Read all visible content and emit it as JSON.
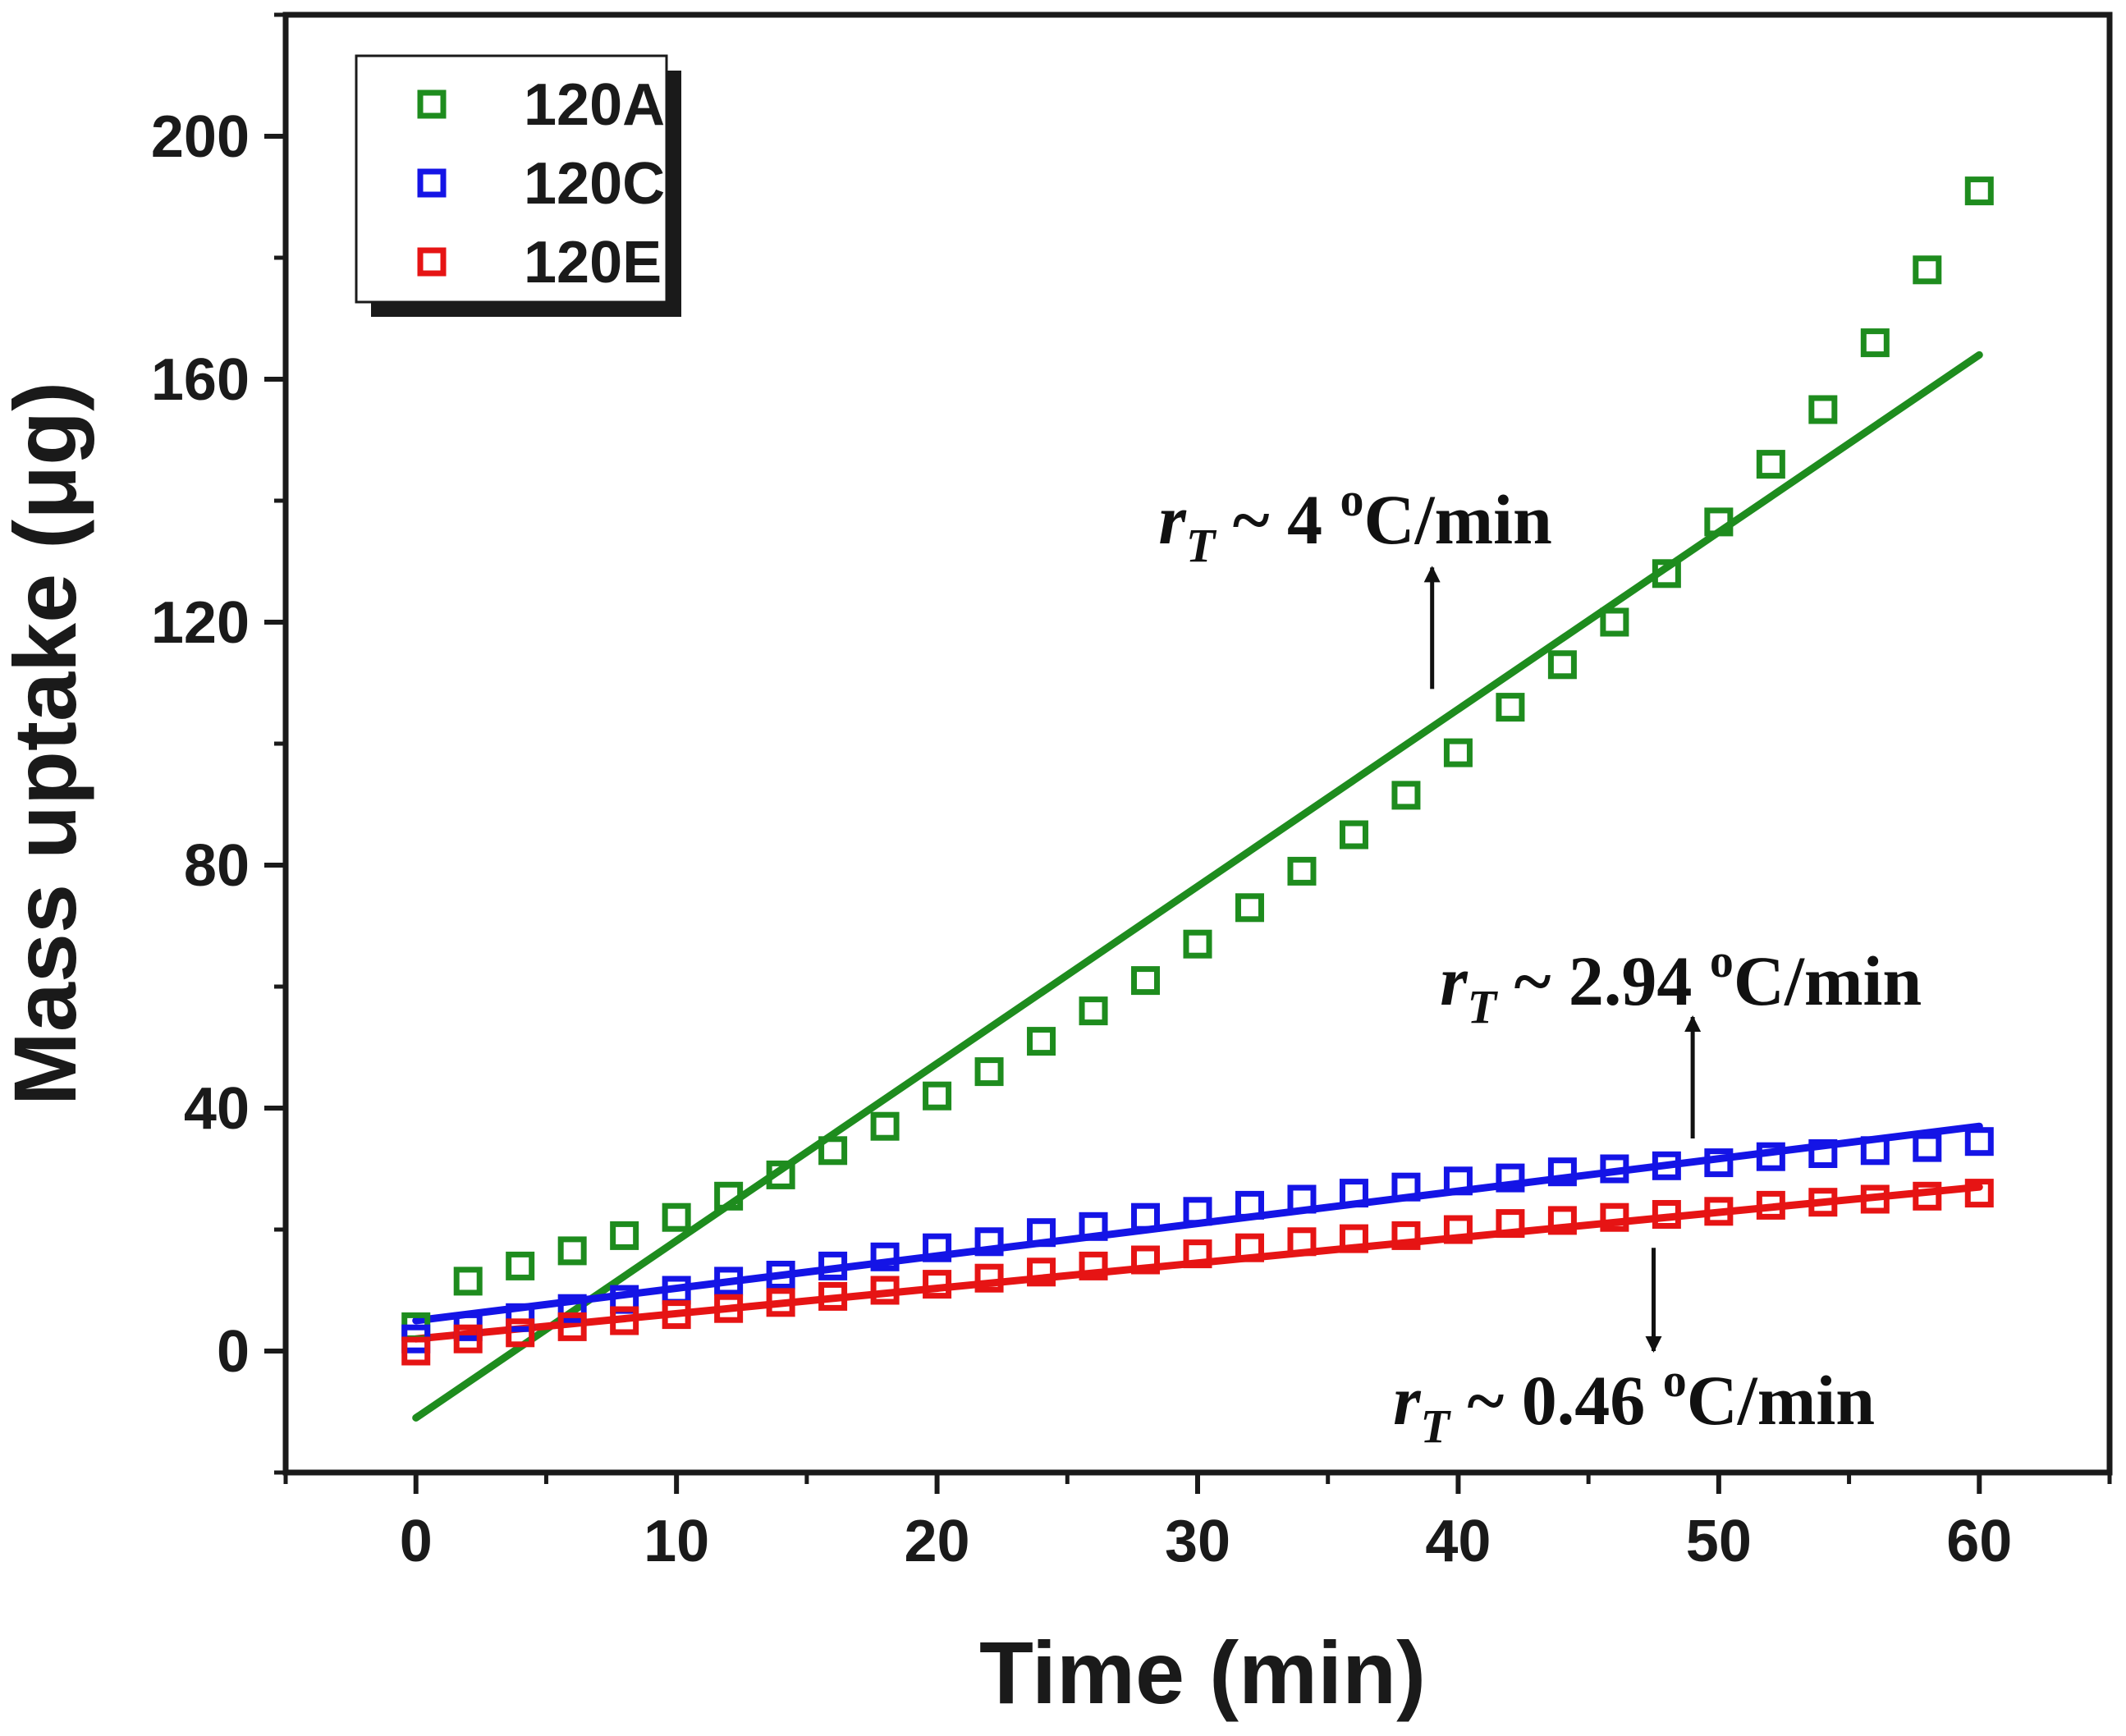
{
  "chart_data": {
    "type": "scatter",
    "xlabel": "Time (min)",
    "ylabel": "Mass uptake (μg)",
    "xlim": [
      -5,
      65
    ],
    "ylim": [
      -20,
      220
    ],
    "x_ticks": [
      0,
      10,
      20,
      30,
      40,
      50,
      60
    ],
    "y_ticks": [
      0,
      40,
      80,
      120,
      160,
      200
    ],
    "grid": false,
    "legend_position": "top-left",
    "series": [
      {
        "name": "120A",
        "color": "#1e8c1e",
        "marker": "open-square",
        "x": [
          0,
          2,
          4,
          6,
          8,
          10,
          12,
          14,
          16,
          18,
          20,
          22,
          24,
          26,
          28,
          30,
          32,
          34,
          36,
          38,
          40,
          42,
          44,
          46,
          48,
          50,
          52,
          54,
          56,
          58,
          60
        ],
        "y": [
          4,
          11.5,
          14,
          16.5,
          19,
          22,
          25.5,
          29,
          33,
          37,
          42,
          46,
          51,
          56,
          61,
          67,
          73,
          79,
          85,
          91.5,
          98.5,
          106,
          113,
          120,
          128,
          136.5,
          146,
          155,
          166,
          178,
          191
        ],
        "fit": {
          "x": [
            0,
            60
          ],
          "y": [
            -11,
            164
          ]
        }
      },
      {
        "name": "120C",
        "color": "#1414e6",
        "marker": "open-square",
        "x": [
          0,
          2,
          4,
          6,
          8,
          10,
          12,
          14,
          16,
          18,
          20,
          22,
          24,
          26,
          28,
          30,
          32,
          34,
          36,
          38,
          40,
          42,
          44,
          46,
          48,
          50,
          52,
          54,
          56,
          58,
          60
        ],
        "y": [
          2,
          4,
          5.5,
          7,
          8.5,
          10,
          11.5,
          12.5,
          14,
          15.5,
          17,
          18,
          19.5,
          20.5,
          22,
          23,
          24,
          25,
          26,
          27,
          28,
          28.5,
          29.5,
          30,
          30.5,
          31,
          32,
          32.5,
          33,
          33.5,
          34.5
        ],
        "fit": {
          "x": [
            0,
            60
          ],
          "y": [
            5,
            37
          ]
        }
      },
      {
        "name": "120E",
        "color": "#e61414",
        "marker": "open-square",
        "x": [
          0,
          2,
          4,
          6,
          8,
          10,
          12,
          14,
          16,
          18,
          20,
          22,
          24,
          26,
          28,
          30,
          32,
          34,
          36,
          38,
          40,
          42,
          44,
          46,
          48,
          50,
          52,
          54,
          56,
          58,
          60
        ],
        "y": [
          0,
          2,
          3,
          4,
          5,
          6,
          7,
          8,
          9,
          10,
          11,
          12,
          13,
          14,
          15,
          16,
          17,
          18,
          18.5,
          19,
          20,
          21,
          21.5,
          22,
          22.5,
          23,
          24,
          24.5,
          25,
          25.5,
          26
        ],
        "fit": {
          "x": [
            0,
            60
          ],
          "y": [
            2,
            27
          ]
        }
      }
    ],
    "annotations": [
      {
        "label": "r",
        "subscript": "T",
        "rest": " ~ 4 ",
        "unit_sup": "o",
        "unit": "C/min",
        "text_at": [
          28.5,
          133
        ],
        "arrow_from": [
          39,
          109
        ],
        "arrow_to": [
          39,
          129
        ]
      },
      {
        "label": "r",
        "subscript": "T",
        "rest": " ~ 2.94 ",
        "unit_sup": "o",
        "unit": "C/min",
        "text_at": [
          39.3,
          57
        ],
        "arrow_from": [
          49,
          35
        ],
        "arrow_to": [
          49,
          55
        ]
      },
      {
        "label": "r",
        "subscript": "T",
        "rest": " ~ 0.46 ",
        "unit_sup": "o",
        "unit": "C/min",
        "text_at": [
          37.5,
          -12
        ],
        "arrow_from": [
          47.5,
          17
        ],
        "arrow_to": [
          47.5,
          0
        ]
      }
    ]
  }
}
